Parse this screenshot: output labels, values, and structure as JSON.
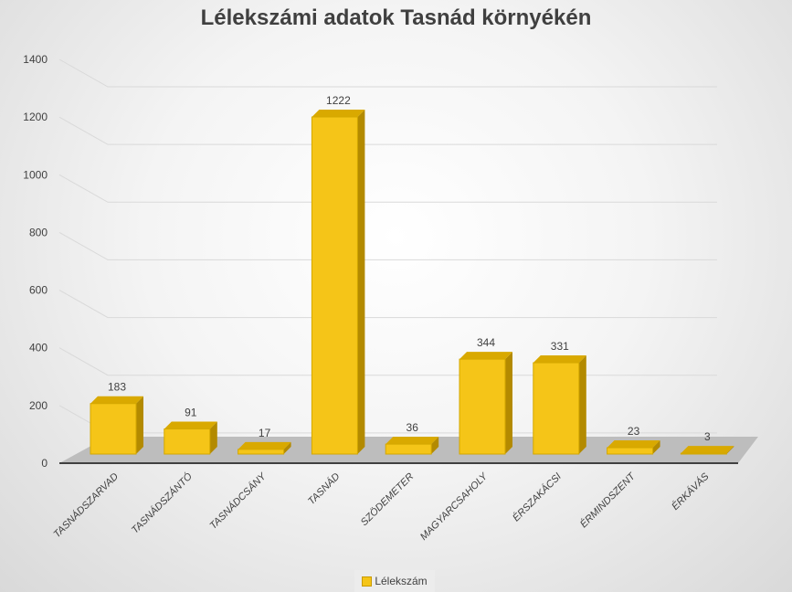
{
  "chart_data": {
    "type": "bar",
    "title": "Lélekszámi adatok Tasnád környékén",
    "categories": [
      "TASNÁDSZARVAD",
      "TASNÁDSZÁNTÓ",
      "TASNÁDCSÁNY",
      "TASNÁD",
      "SZÖDEMETER",
      "MAGYARCSAHOLY",
      "ÉRSZAKÁCSI",
      "ÉRMINDSZENT",
      "ÉRKÁVÁS"
    ],
    "series": [
      {
        "name": "Lélekszám",
        "values": [
          183,
          91,
          17,
          1222,
          36,
          344,
          331,
          23,
          3
        ]
      }
    ],
    "yticks": [
      0,
      200,
      400,
      600,
      800,
      1000,
      1200,
      1400
    ],
    "ylim": [
      0,
      1400
    ],
    "grid": true,
    "legend": "bottom",
    "style": "3d-column",
    "colors": {
      "bar": "#f5c518",
      "bar_side": "#b38a00",
      "bar_top": "#d9a900"
    }
  }
}
